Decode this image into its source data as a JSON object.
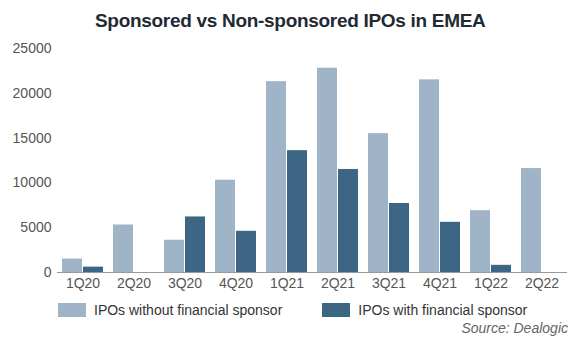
{
  "chart_data": {
    "type": "bar",
    "title": "Sponsored vs Non-sponsored IPOs in EMEA",
    "source": "Source: Dealogic",
    "categories": [
      "1Q20",
      "2Q20",
      "3Q20",
      "4Q20",
      "1Q21",
      "2Q21",
      "3Q21",
      "4Q21",
      "1Q22",
      "2Q22"
    ],
    "series": [
      {
        "name": "IPOs without financial sponsor",
        "color": "#9fb4c7",
        "values": [
          1500,
          5300,
          3600,
          10300,
          21300,
          22800,
          15500,
          21500,
          6900,
          11600
        ]
      },
      {
        "name": "IPOs with financial sponsor",
        "color": "#3d6685",
        "values": [
          600,
          0,
          6200,
          4600,
          13600,
          11500,
          7700,
          5600,
          800,
          0
        ]
      }
    ],
    "ylim": [
      0,
      25000
    ],
    "yticks": [
      0,
      5000,
      10000,
      15000,
      20000,
      25000
    ],
    "grid": false,
    "legend": "bottom"
  }
}
